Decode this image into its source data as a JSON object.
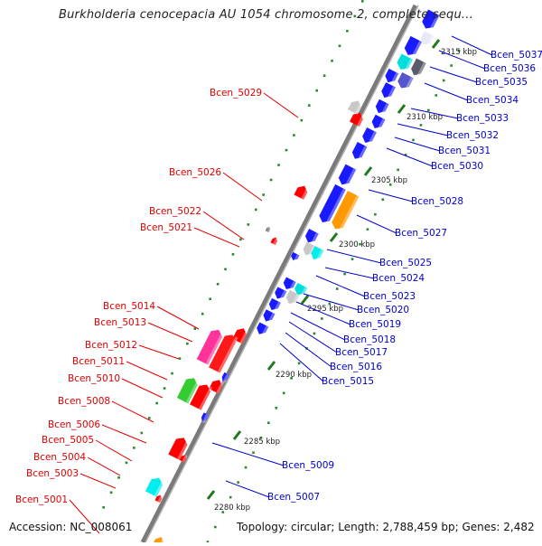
{
  "title": "Burkholderia cenocepacia AU 1054 chromosome 2, complete sequ...",
  "footer": {
    "accession": "Accession: NC_008061",
    "topology": "Topology: circular; Length: 2,788,459 bp; Genes: 2,482"
  },
  "colors": {
    "left_labels": "#e00000",
    "right_labels": "#0000cc",
    "backbone": "#808080",
    "ticks": "#2a8a2a"
  },
  "kbp_ticks": [
    "2280 kbp",
    "2285 kbp",
    "2290 kbp",
    "2295 kbp",
    "2300 kbp",
    "2305 kbp",
    "2310 kbp",
    "2315 kbp"
  ],
  "genes_left": [
    "Bcen_5001",
    "Bcen_5003",
    "Bcen_5004",
    "Bcen_5005",
    "Bcen_5006",
    "Bcen_5008",
    "Bcen_5010",
    "Bcen_5011",
    "Bcen_5012",
    "Bcen_5013",
    "Bcen_5014",
    "Bcen_5021",
    "Bcen_5022",
    "Bcen_5026",
    "Bcen_5029"
  ],
  "genes_right": [
    "Bcen_5007",
    "Bcen_5009",
    "Bcen_5015",
    "Bcen_5016",
    "Bcen_5017",
    "Bcen_5018",
    "Bcen_5019",
    "Bcen_5020",
    "Bcen_5023",
    "Bcen_5024",
    "Bcen_5025",
    "Bcen_5027",
    "Bcen_5028",
    "Bcen_5030",
    "Bcen_5031",
    "Bcen_5032",
    "Bcen_5033",
    "Bcen_5034",
    "Bcen_5035",
    "Bcen_5036",
    "Bcen_5037"
  ]
}
